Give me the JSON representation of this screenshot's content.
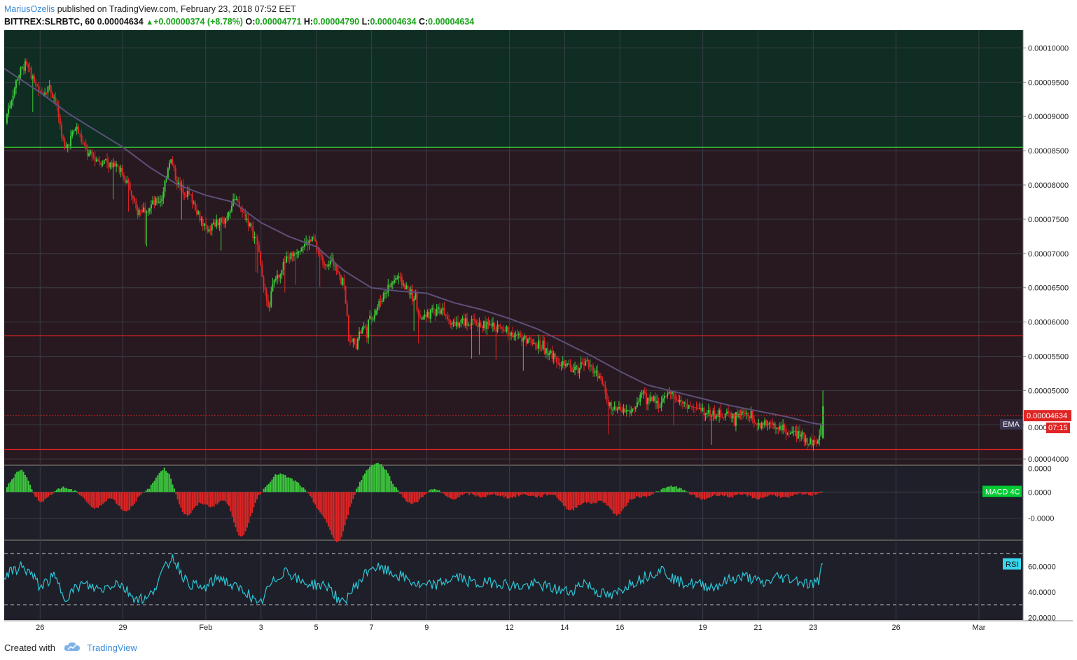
{
  "header": {
    "author": "MariusOzelis",
    "published_text": " published on TradingView.com, February 23, 2018 07:52 EET",
    "symbol": "BITTREX:SLRBTC, 60",
    "last": "0.00004634",
    "change": "+0.00000374 (+8.78%)",
    "o_label": "O:",
    "o_value": "0.00004771",
    "h_label": "H:",
    "h_value": "0.00004790",
    "l_label": "L:",
    "l_value": "0.00004634",
    "c_label": "C:",
    "c_value": "0.00004634"
  },
  "footer": {
    "created_with": "Created with",
    "brand": "TradingView"
  },
  "colors": {
    "pane_bg": "#1e1f28",
    "upper_zone": "#0f2d22",
    "lower_zone": "#281920",
    "up_candle": "#3cc93c",
    "down_candle": "#e02424",
    "ema": "#5c4f7a",
    "rsi": "#2cc7d8",
    "green_line": "#33cc33",
    "red_line": "#dd2222"
  },
  "chart_data": [
    {
      "type": "candlestick",
      "title": "BITTREX:SLRBTC, 60",
      "y_tick_labels": [
        "0.00010000",
        "0.00009500",
        "0.00009000",
        "0.00008500",
        "0.00008000",
        "0.00007500",
        "0.00007000",
        "0.00006500",
        "0.00006000",
        "0.00005500",
        "0.00005000",
        "0.00004500",
        "0.00004000"
      ],
      "ylim": [
        3.92e-05,
        0.0001026
      ],
      "x_tick_labels": [
        "26",
        "29",
        "Feb",
        "3",
        "5",
        "7",
        "9",
        "12",
        "14",
        "16",
        "19",
        "21",
        "23",
        "26",
        "Mar"
      ],
      "x_tick_days": [
        1,
        4,
        7,
        9,
        11,
        13,
        15,
        18,
        20,
        22,
        25,
        27,
        29,
        32,
        35
      ],
      "x_range_days": [
        -0.3,
        36.6
      ],
      "last_data_day": 29.35,
      "close_path": [
        [
          -0.3,
          8.9e-05
        ],
        [
          0.2,
          9.6e-05
        ],
        [
          0.45,
          9.75e-05
        ],
        [
          0.7,
          9.6e-05
        ],
        [
          1.0,
          9.3e-05
        ],
        [
          1.3,
          9.45e-05
        ],
        [
          1.55,
          9.25e-05
        ],
        [
          1.9,
          8.5e-05
        ],
        [
          2.3,
          8.85e-05
        ],
        [
          2.7,
          8.45e-05
        ],
        [
          3.2,
          8.35e-05
        ],
        [
          3.8,
          8.3e-05
        ],
        [
          4.2,
          8e-05
        ],
        [
          4.5,
          7.6e-05
        ],
        [
          5.0,
          7.7e-05
        ],
        [
          5.4,
          7.8e-05
        ],
        [
          5.7,
          8.4e-05
        ],
        [
          6.0,
          8e-05
        ],
        [
          6.5,
          7.8e-05
        ],
        [
          7.0,
          7.35e-05
        ],
        [
          7.7,
          7.5e-05
        ],
        [
          8.0,
          7.8e-05
        ],
        [
          8.5,
          7.5e-05
        ],
        [
          8.9,
          7.1e-05
        ],
        [
          9.2,
          6.3e-05
        ],
        [
          9.5,
          6.6e-05
        ],
        [
          9.9,
          6.9e-05
        ],
        [
          10.4,
          7.1e-05
        ],
        [
          10.9,
          7.2e-05
        ],
        [
          11.2,
          6.9e-05
        ],
        [
          11.7,
          6.85e-05
        ],
        [
          12.0,
          6.6e-05
        ],
        [
          12.2,
          5.65e-05
        ],
        [
          12.5,
          5.8e-05
        ],
        [
          12.9,
          6e-05
        ],
        [
          13.2,
          6.2e-05
        ],
        [
          13.5,
          6.45e-05
        ],
        [
          13.9,
          6.65e-05
        ],
        [
          14.4,
          6.45e-05
        ],
        [
          14.8,
          6e-05
        ],
        [
          15.2,
          6.15e-05
        ],
        [
          15.6,
          6.2e-05
        ],
        [
          15.9,
          6e-05
        ],
        [
          16.4,
          6e-05
        ],
        [
          17.2,
          5.95e-05
        ],
        [
          17.8,
          5.9e-05
        ],
        [
          18.3,
          5.8e-05
        ],
        [
          18.9,
          5.7e-05
        ],
        [
          19.5,
          5.55e-05
        ],
        [
          20.0,
          5.35e-05
        ],
        [
          20.4,
          5.3e-05
        ],
        [
          20.9,
          5.4e-05
        ],
        [
          21.3,
          5.15e-05
        ],
        [
          21.7,
          4.7e-05
        ],
        [
          22.1,
          4.7e-05
        ],
        [
          22.4,
          4.7e-05
        ],
        [
          22.9,
          4.95e-05
        ],
        [
          23.4,
          4.8e-05
        ],
        [
          23.9,
          4.95e-05
        ],
        [
          24.4,
          4.8e-05
        ],
        [
          24.9,
          4.7e-05
        ],
        [
          25.5,
          4.65e-05
        ],
        [
          26.1,
          4.65e-05
        ],
        [
          26.7,
          4.65e-05
        ],
        [
          27.1,
          4.5e-05
        ],
        [
          27.5,
          4.5e-05
        ],
        [
          28.0,
          4.4e-05
        ],
        [
          28.5,
          4.35e-05
        ],
        [
          28.9,
          4.25e-05
        ],
        [
          29.2,
          4.25e-05
        ],
        [
          29.35,
          4.63e-05
        ]
      ],
      "ema_path": [
        [
          -0.3,
          9.7e-05
        ],
        [
          1.0,
          9.35e-05
        ],
        [
          2.0,
          9.05e-05
        ],
        [
          3.0,
          8.8e-05
        ],
        [
          4.0,
          8.55e-05
        ],
        [
          5.0,
          8.25e-05
        ],
        [
          6.0,
          8e-05
        ],
        [
          7.0,
          7.85e-05
        ],
        [
          8.0,
          7.75e-05
        ],
        [
          9.0,
          7.45e-05
        ],
        [
          10.0,
          7.25e-05
        ],
        [
          11.0,
          7.1e-05
        ],
        [
          12.0,
          6.75e-05
        ],
        [
          13.0,
          6.5e-05
        ],
        [
          14.0,
          6.45e-05
        ],
        [
          15.0,
          6.42e-05
        ],
        [
          16.0,
          6.28e-05
        ],
        [
          17.0,
          6.18e-05
        ],
        [
          18.0,
          6.05e-05
        ],
        [
          19.0,
          5.9e-05
        ],
        [
          20.0,
          5.7e-05
        ],
        [
          21.0,
          5.5e-05
        ],
        [
          22.0,
          5.28e-05
        ],
        [
          23.0,
          5.08e-05
        ],
        [
          24.0,
          4.98e-05
        ],
        [
          25.0,
          4.88e-05
        ],
        [
          26.0,
          4.78e-05
        ],
        [
          27.0,
          4.7e-05
        ],
        [
          28.0,
          4.62e-05
        ],
        [
          28.9,
          4.53e-05
        ],
        [
          29.35,
          4.5e-05
        ]
      ],
      "horizontal_lines": [
        {
          "value": 8.55e-05,
          "color": "#33cc33"
        },
        {
          "value": 5.8e-05,
          "color": "#dd2222"
        },
        {
          "value": 4.14e-05,
          "color": "#dd2222"
        }
      ],
      "last_price_value": 4.634e-05,
      "last_price_label": "0.00004634",
      "countdown_label": "07:15",
      "ema_label": "EMA",
      "ema_partial_value": "0.000"
    },
    {
      "type": "bar",
      "title": "MACD 4C",
      "y_tick_labels": [
        "0.0000",
        "0.0000",
        "-0.0000"
      ],
      "ylim": [
        -1.0,
        0.55
      ],
      "bursts": [
        [
          0.3,
          0.48
        ],
        [
          1.0,
          -0.22
        ],
        [
          1.8,
          0.1
        ],
        [
          3.0,
          -0.35
        ],
        [
          4.1,
          -0.4
        ],
        [
          5.5,
          0.5
        ],
        [
          6.3,
          -0.5
        ],
        [
          7.2,
          -0.3
        ],
        [
          8.3,
          -0.95
        ],
        [
          9.6,
          0.35
        ],
        [
          10.2,
          0.2
        ],
        [
          11.2,
          -0.35
        ],
        [
          11.8,
          -1.0
        ],
        [
          12.9,
          0.4
        ],
        [
          13.4,
          0.46
        ],
        [
          14.5,
          -0.25
        ],
        [
          15.3,
          0.08
        ],
        [
          15.9,
          -0.15
        ],
        [
          17.0,
          -0.1
        ],
        [
          18.0,
          -0.12
        ],
        [
          19.0,
          -0.1
        ],
        [
          20.2,
          -0.38
        ],
        [
          21.0,
          -0.22
        ],
        [
          21.9,
          -0.48
        ],
        [
          22.8,
          -0.1
        ],
        [
          23.9,
          0.12
        ],
        [
          25.0,
          -0.15
        ],
        [
          26.0,
          -0.1
        ],
        [
          27.0,
          -0.14
        ],
        [
          28.0,
          -0.12
        ],
        [
          29.0,
          -0.08
        ],
        [
          29.35,
          0.05
        ]
      ]
    },
    {
      "type": "line",
      "title": "RSI",
      "y_tick_labels": [
        "60.0000",
        "40.0000",
        "20.0000"
      ],
      "ylim": [
        18,
        80
      ],
      "guide_levels": [
        70,
        30
      ],
      "rsi_path": [
        [
          -0.3,
          52
        ],
        [
          0.3,
          60
        ],
        [
          0.6,
          56
        ],
        [
          1.0,
          44
        ],
        [
          1.5,
          52
        ],
        [
          1.9,
          36
        ],
        [
          2.5,
          46
        ],
        [
          3.2,
          42
        ],
        [
          3.8,
          48
        ],
        [
          4.4,
          36
        ],
        [
          4.9,
          34
        ],
        [
          5.4,
          54
        ],
        [
          5.8,
          68
        ],
        [
          6.3,
          48
        ],
        [
          6.9,
          42
        ],
        [
          7.5,
          52
        ],
        [
          8.0,
          44
        ],
        [
          8.5,
          40
        ],
        [
          8.9,
          28
        ],
        [
          9.3,
          44
        ],
        [
          9.9,
          58
        ],
        [
          10.4,
          48
        ],
        [
          10.9,
          46
        ],
        [
          11.5,
          44
        ],
        [
          11.9,
          30
        ],
        [
          12.4,
          44
        ],
        [
          13.0,
          60
        ],
        [
          13.6,
          56
        ],
        [
          14.3,
          50
        ],
        [
          14.8,
          44
        ],
        [
          15.4,
          46
        ],
        [
          16.1,
          52
        ],
        [
          16.8,
          46
        ],
        [
          17.5,
          48
        ],
        [
          18.3,
          44
        ],
        [
          19.0,
          46
        ],
        [
          19.7,
          42
        ],
        [
          20.2,
          40
        ],
        [
          20.7,
          48
        ],
        [
          21.2,
          40
        ],
        [
          21.7,
          36
        ],
        [
          22.3,
          46
        ],
        [
          22.9,
          52
        ],
        [
          23.5,
          58
        ],
        [
          24.1,
          48
        ],
        [
          24.8,
          46
        ],
        [
          25.4,
          44
        ],
        [
          26.0,
          50
        ],
        [
          26.6,
          52
        ],
        [
          27.2,
          46
        ],
        [
          27.7,
          52
        ],
        [
          28.3,
          50
        ],
        [
          28.9,
          46
        ],
        [
          29.2,
          48
        ],
        [
          29.35,
          62
        ]
      ]
    }
  ]
}
